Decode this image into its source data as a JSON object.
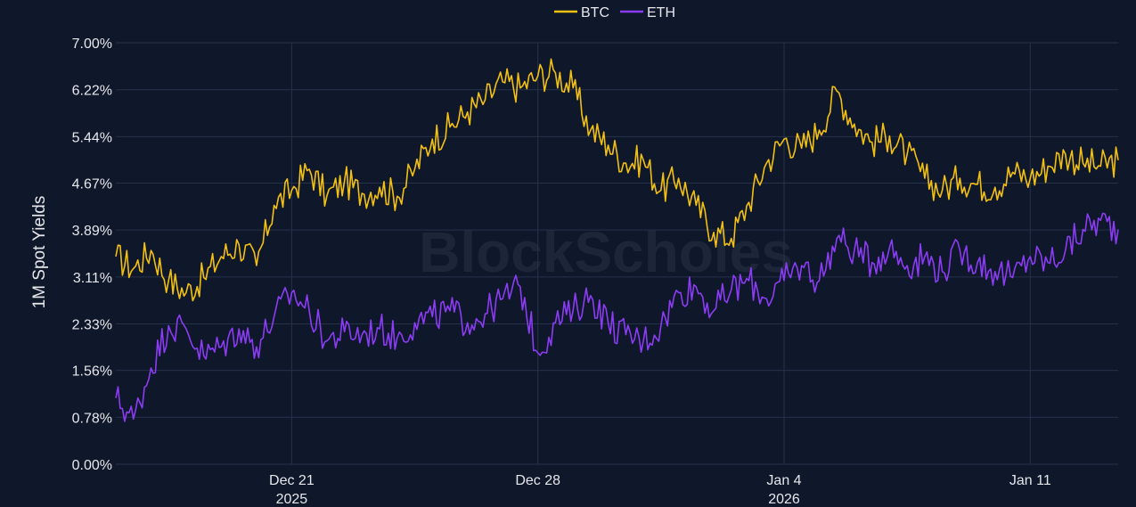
{
  "chart_data": {
    "type": "line",
    "ylabel": "1M Spot Yields",
    "ylim": [
      0,
      7.0
    ],
    "yticks": [
      {
        "value": 0.0,
        "label": "0.00%"
      },
      {
        "value": 0.78,
        "label": "0.78%"
      },
      {
        "value": 1.56,
        "label": "1.56%"
      },
      {
        "value": 2.33,
        "label": "2.33%"
      },
      {
        "value": 3.11,
        "label": "3.11%"
      },
      {
        "value": 3.89,
        "label": "3.89%"
      },
      {
        "value": 4.67,
        "label": "4.67%"
      },
      {
        "value": 5.44,
        "label": "5.44%"
      },
      {
        "value": 6.22,
        "label": "6.22%"
      },
      {
        "value": 7.0,
        "label": "7.00%"
      }
    ],
    "xlim": [
      "2025-12-16T00:00",
      "2026-01-13T12:00"
    ],
    "xticks": [
      {
        "value": "2025-12-21T00:00",
        "label": "Dec 21",
        "sublabel": "2025"
      },
      {
        "value": "2025-12-28T00:00",
        "label": "Dec 28",
        "sublabel": ""
      },
      {
        "value": "2026-01-04T00:00",
        "label": "Jan 4",
        "sublabel": "2026"
      },
      {
        "value": "2026-01-11T00:00",
        "label": "Jan 11",
        "sublabel": ""
      }
    ],
    "legend_position": "top-center",
    "grid": true,
    "watermark": "BlockScholes",
    "series": [
      {
        "name": "BTC",
        "color": "#f2c012",
        "points": [
          [
            "2025-12-16T00:00",
            3.45
          ],
          [
            "2025-12-16T12:00",
            3.25
          ],
          [
            "2025-12-17T00:00",
            3.55
          ],
          [
            "2025-12-17T12:00",
            3.05
          ],
          [
            "2025-12-18T00:00",
            2.85
          ],
          [
            "2025-12-18T12:00",
            3.1
          ],
          [
            "2025-12-19T00:00",
            3.45
          ],
          [
            "2025-12-19T12:00",
            3.65
          ],
          [
            "2025-12-20T00:00",
            3.3
          ],
          [
            "2025-12-20T12:00",
            4.3
          ],
          [
            "2025-12-21T00:00",
            4.55
          ],
          [
            "2025-12-21T12:00",
            4.9
          ],
          [
            "2025-12-22T00:00",
            4.45
          ],
          [
            "2025-12-22T12:00",
            4.7
          ],
          [
            "2025-12-23T00:00",
            4.5
          ],
          [
            "2025-12-23T12:00",
            4.6
          ],
          [
            "2025-12-24T00:00",
            4.45
          ],
          [
            "2025-12-24T12:00",
            4.9
          ],
          [
            "2025-12-25T00:00",
            5.4
          ],
          [
            "2025-12-25T12:00",
            5.6
          ],
          [
            "2025-12-26T00:00",
            5.85
          ],
          [
            "2025-12-26T12:00",
            6.05
          ],
          [
            "2025-12-27T00:00",
            6.35
          ],
          [
            "2025-12-27T12:00",
            6.25
          ],
          [
            "2025-12-28T00:00",
            6.45
          ],
          [
            "2025-12-28T12:00",
            6.5
          ],
          [
            "2025-12-29T00:00",
            6.25
          ],
          [
            "2025-12-29T12:00",
            5.55
          ],
          [
            "2025-12-30T00:00",
            5.3
          ],
          [
            "2025-12-30T12:00",
            5.0
          ],
          [
            "2025-12-31T00:00",
            5.05
          ],
          [
            "2025-12-31T12:00",
            4.55
          ],
          [
            "2026-01-01T00:00",
            4.75
          ],
          [
            "2026-01-01T12:00",
            4.3
          ],
          [
            "2026-01-02T00:00",
            3.85
          ],
          [
            "2026-01-02T12:00",
            3.75
          ],
          [
            "2026-01-03T00:00",
            4.35
          ],
          [
            "2026-01-03T12:00",
            5.0
          ],
          [
            "2026-01-04T00:00",
            5.4
          ],
          [
            "2026-01-04T12:00",
            5.25
          ],
          [
            "2026-01-05T00:00",
            5.55
          ],
          [
            "2026-01-05T12:00",
            6.2
          ],
          [
            "2026-01-06T00:00",
            5.65
          ],
          [
            "2026-01-06T12:00",
            5.35
          ],
          [
            "2026-01-07T00:00",
            5.45
          ],
          [
            "2026-01-07T12:00",
            5.15
          ],
          [
            "2026-01-08T00:00",
            4.75
          ],
          [
            "2026-01-08T12:00",
            4.55
          ],
          [
            "2026-01-09T00:00",
            4.75
          ],
          [
            "2026-01-09T12:00",
            4.65
          ],
          [
            "2026-01-10T00:00",
            4.6
          ],
          [
            "2026-01-10T12:00",
            4.85
          ],
          [
            "2026-01-11T00:00",
            4.75
          ],
          [
            "2026-01-11T12:00",
            4.95
          ],
          [
            "2026-01-12T00:00",
            5.15
          ],
          [
            "2026-01-12T12:00",
            5.0
          ],
          [
            "2026-01-13T00:00",
            4.95
          ],
          [
            "2026-01-13T12:00",
            5.05
          ]
        ]
      },
      {
        "name": "ETH",
        "color": "#8b3cf4",
        "points": [
          [
            "2025-12-16T00:00",
            1.1
          ],
          [
            "2025-12-16T12:00",
            0.75
          ],
          [
            "2025-12-17T00:00",
            1.6
          ],
          [
            "2025-12-17T12:00",
            2.3
          ],
          [
            "2025-12-18T00:00",
            2.25
          ],
          [
            "2025-12-18T12:00",
            1.8
          ],
          [
            "2025-12-19T00:00",
            1.95
          ],
          [
            "2025-12-19T12:00",
            2.25
          ],
          [
            "2025-12-20T00:00",
            1.95
          ],
          [
            "2025-12-20T12:00",
            2.45
          ],
          [
            "2025-12-21T00:00",
            2.85
          ],
          [
            "2025-12-21T12:00",
            2.55
          ],
          [
            "2025-12-22T00:00",
            2.05
          ],
          [
            "2025-12-22T12:00",
            2.2
          ],
          [
            "2025-12-23T00:00",
            2.15
          ],
          [
            "2025-12-23T12:00",
            2.25
          ],
          [
            "2025-12-24T00:00",
            2.1
          ],
          [
            "2025-12-24T12:00",
            2.35
          ],
          [
            "2025-12-25T00:00",
            2.45
          ],
          [
            "2025-12-25T12:00",
            2.55
          ],
          [
            "2025-12-26T00:00",
            2.35
          ],
          [
            "2025-12-26T12:00",
            2.5
          ],
          [
            "2025-12-27T00:00",
            2.75
          ],
          [
            "2025-12-27T12:00",
            2.95
          ],
          [
            "2025-12-28T00:00",
            1.85
          ],
          [
            "2025-12-28T12:00",
            2.35
          ],
          [
            "2025-12-29T00:00",
            2.55
          ],
          [
            "2025-12-29T12:00",
            2.8
          ],
          [
            "2025-12-30T00:00",
            2.35
          ],
          [
            "2025-12-30T12:00",
            2.15
          ],
          [
            "2025-12-31T00:00",
            2.05
          ],
          [
            "2025-12-31T12:00",
            2.3
          ],
          [
            "2026-01-01T00:00",
            2.85
          ],
          [
            "2026-01-01T12:00",
            2.95
          ],
          [
            "2026-01-02T00:00",
            2.55
          ],
          [
            "2026-01-02T12:00",
            2.9
          ],
          [
            "2026-01-03T00:00",
            3.05
          ],
          [
            "2026-01-03T12:00",
            2.75
          ],
          [
            "2026-01-04T00:00",
            3.05
          ],
          [
            "2026-01-04T12:00",
            3.3
          ],
          [
            "2026-01-05T00:00",
            3.05
          ],
          [
            "2026-01-05T12:00",
            3.75
          ],
          [
            "2026-01-06T00:00",
            3.55
          ],
          [
            "2026-01-06T12:00",
            3.35
          ],
          [
            "2026-01-07T00:00",
            3.6
          ],
          [
            "2026-01-07T12:00",
            3.3
          ],
          [
            "2026-01-08T00:00",
            3.45
          ],
          [
            "2026-01-08T12:00",
            3.2
          ],
          [
            "2026-01-09T00:00",
            3.55
          ],
          [
            "2026-01-09T12:00",
            3.35
          ],
          [
            "2026-01-10T00:00",
            3.2
          ],
          [
            "2026-01-10T12:00",
            3.1
          ],
          [
            "2026-01-11T00:00",
            3.45
          ],
          [
            "2026-01-11T12:00",
            3.35
          ],
          [
            "2026-01-12T00:00",
            3.55
          ],
          [
            "2026-01-12T12:00",
            3.9
          ],
          [
            "2026-01-13T00:00",
            4.05
          ],
          [
            "2026-01-13T12:00",
            3.9
          ]
        ]
      }
    ]
  }
}
